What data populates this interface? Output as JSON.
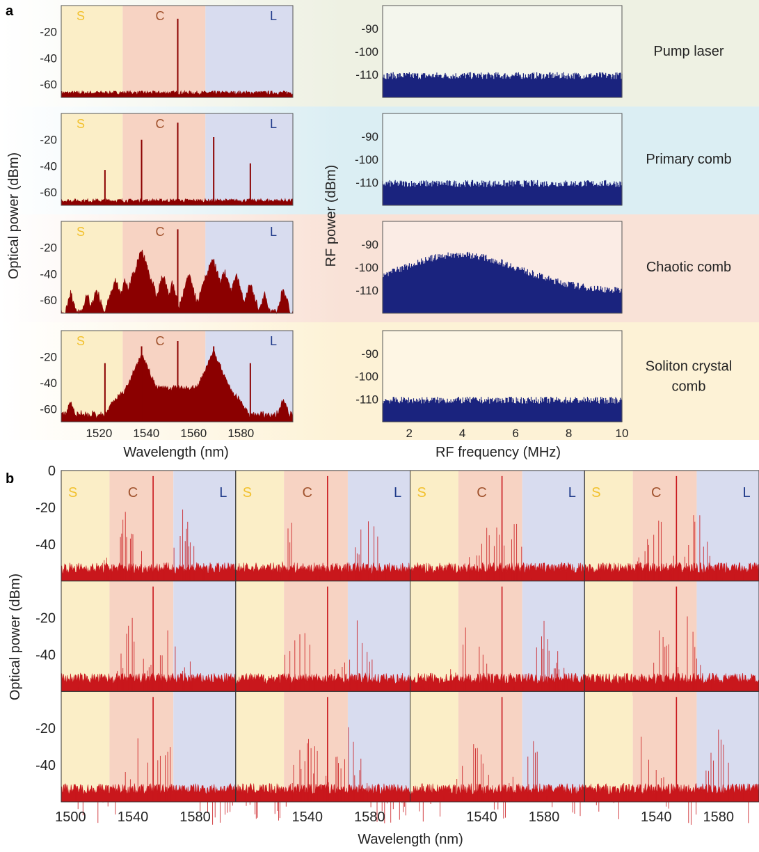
{
  "figure": {
    "panel_a_label": "a",
    "panel_b_label": "b",
    "band_labels": [
      "S",
      "C",
      "L"
    ],
    "band_label_colors": [
      "#f2c12e",
      "#a0522d",
      "#1f3a8a"
    ],
    "band_colors": [
      "#fbeec7",
      "#f7d3c3",
      "#d8dcef"
    ],
    "optical_trace_color": "#8b0000",
    "optical_trace_color_b": "#c9171c",
    "rf_trace_color": "#1a237e"
  },
  "panel_a": {
    "optical_ylabel": "Optical power (dBm)",
    "optical_xlabel": "Wavelength (nm)",
    "optical_yticks": [
      -20,
      -40,
      -60
    ],
    "optical_xticks": [
      1520,
      1540,
      1560,
      1580
    ],
    "optical_xlim": [
      1504,
      1602
    ],
    "optical_ylim": [
      -70,
      0
    ],
    "band_edges_nm": [
      1504,
      1530,
      1565,
      1602
    ],
    "rf_ylabel": "RF power (dBm)",
    "rf_xlabel": "RF frequency (MHz)",
    "rf_yticks": [
      -90,
      -100,
      -110
    ],
    "rf_xticks": [
      2,
      4,
      6,
      8,
      10
    ],
    "rf_xlim": [
      1,
      10
    ],
    "rf_ylim": [
      -120,
      -80
    ],
    "rows": [
      {
        "state": "Pump laser",
        "row_color": "#eef1e3",
        "optical_lines": [
          {
            "wl": 1553.3,
            "p": -10
          }
        ],
        "optical_floor": -68,
        "rf_level": -112
      },
      {
        "state": "Primary comb",
        "row_color": "#dbeef3",
        "optical_lines": [
          {
            "wl": 1522.5,
            "p": -43
          },
          {
            "wl": 1538,
            "p": -20
          },
          {
            "wl": 1553.3,
            "p": -7
          },
          {
            "wl": 1568.5,
            "p": -18
          },
          {
            "wl": 1584,
            "p": -38
          }
        ],
        "optical_floor": -68,
        "rf_level": -112
      },
      {
        "state": "Chaotic comb",
        "row_color": "#f9e2d7",
        "optical_lines": [
          {
            "wl": 1553.3,
            "p": -6
          }
        ],
        "optical_floor": -60,
        "rf_level": -112
      },
      {
        "state": "Soliton crystal comb",
        "row_color": "#fdf2d6",
        "optical_lines": [
          {
            "wl": 1522.5,
            "p": -25
          },
          {
            "wl": 1538,
            "p": -12
          },
          {
            "wl": 1553.3,
            "p": -8
          },
          {
            "wl": 1568.5,
            "p": -12
          },
          {
            "wl": 1584,
            "p": -25
          }
        ],
        "optical_floor": -66,
        "rf_level": -112
      }
    ]
  },
  "panel_b": {
    "ylabel": "Optical power (dBm)",
    "xlabel": "Wavelength (nm)",
    "yticks": [
      0,
      -20,
      -40
    ],
    "yticks_lower": [
      -20,
      -40
    ],
    "ylim": [
      -60,
      0
    ],
    "xticks_col0": [
      1500,
      1540,
      1580
    ],
    "xticks_other": [
      1540,
      1580
    ],
    "xlim": [
      1494,
      1606
    ],
    "band_edges_nm": [
      1494,
      1525,
      1566,
      1606
    ]
  },
  "chart_data": [
    {
      "type": "line",
      "title": "Pump laser",
      "xlabel": "Wavelength (nm)",
      "ylabel": "Optical power (dBm)",
      "ylim": [
        -70,
        0
      ],
      "series": [
        {
          "x": [
            1553.3
          ],
          "values": [
            -10
          ]
        }
      ]
    },
    {
      "type": "line",
      "title": "Primary comb",
      "xlabel": "Wavelength (nm)",
      "ylabel": "Optical power (dBm)",
      "ylim": [
        -70,
        0
      ],
      "series": [
        {
          "x": [
            1522.5,
            1538,
            1553.3,
            1568.5,
            1584
          ],
          "values": [
            -43,
            -20,
            -7,
            -18,
            -38
          ]
        }
      ]
    },
    {
      "type": "line",
      "title": "Chaotic comb",
      "xlabel": "RF frequency (MHz)",
      "ylabel": "RF power (dBm)",
      "ylim": [
        -120,
        -80
      ],
      "series": [
        {
          "x": [
            1,
            3,
            5,
            7,
            10
          ],
          "values": [
            -108,
            -96,
            -96,
            -103,
            -112
          ]
        }
      ]
    },
    {
      "type": "line",
      "title": "Soliton crystal comb",
      "xlabel": "Wavelength (nm)",
      "ylabel": "Optical power (dBm)",
      "ylim": [
        -70,
        0
      ],
      "series": [
        {
          "x": [
            1522.5,
            1538,
            1553.3,
            1568.5,
            1584
          ],
          "values": [
            -25,
            -12,
            -8,
            -12,
            -25
          ]
        }
      ]
    }
  ]
}
